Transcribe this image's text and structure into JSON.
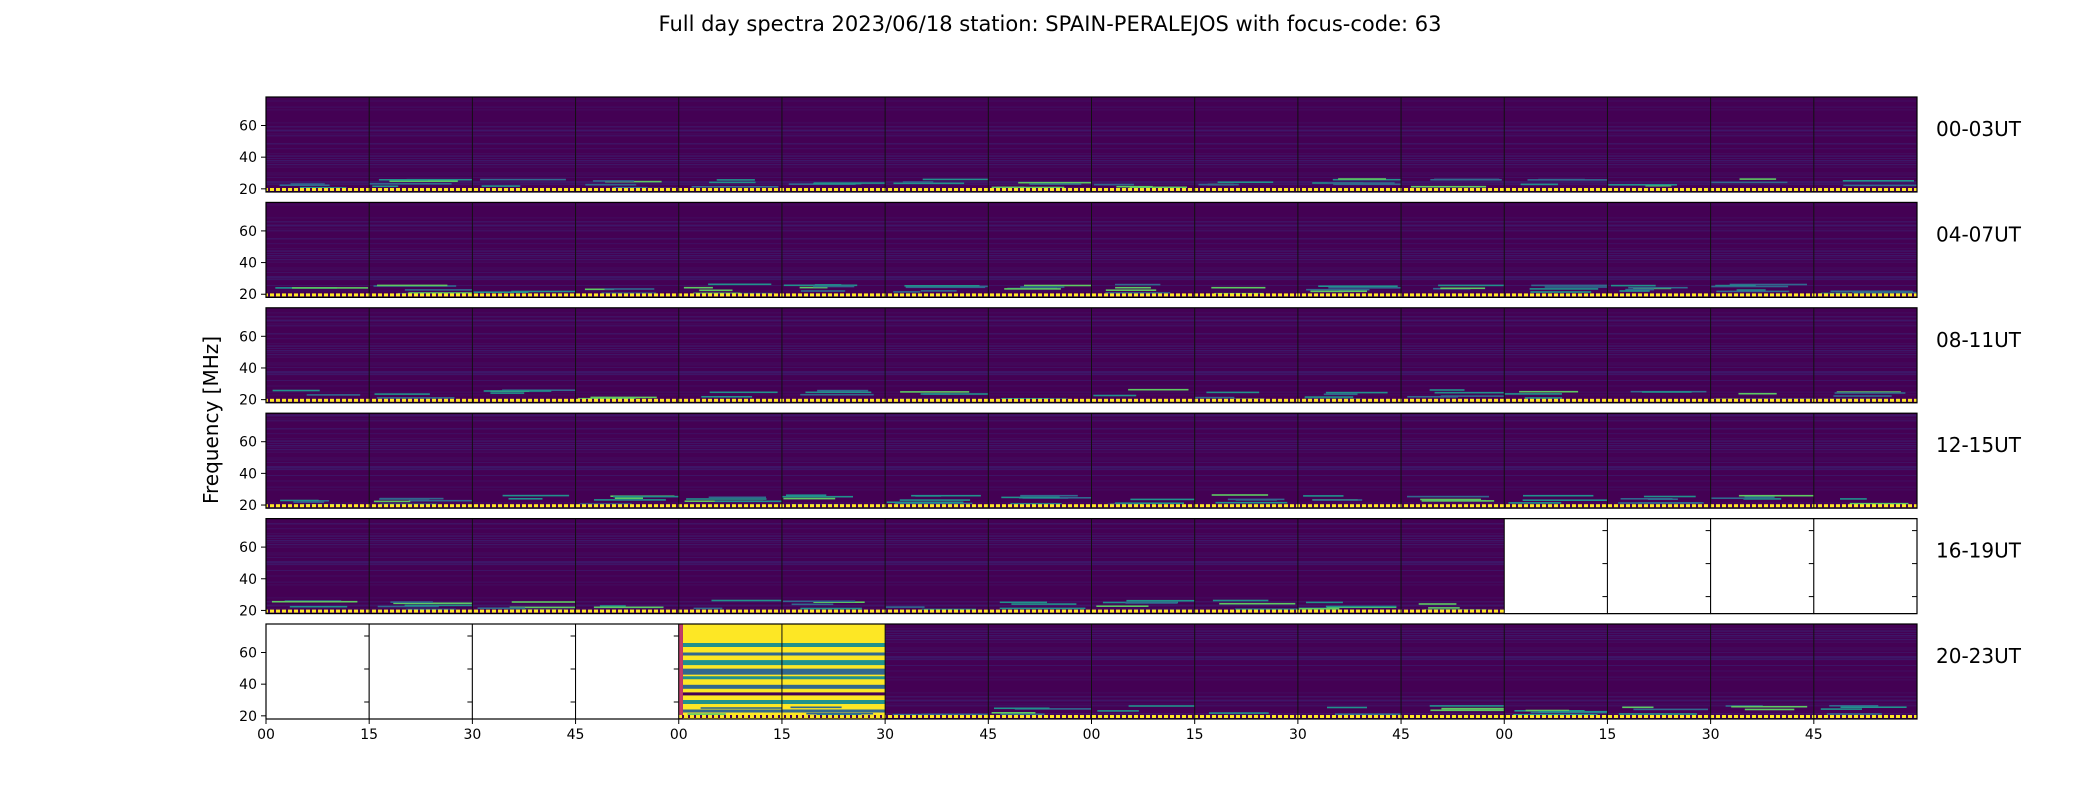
{
  "chart_data": {
    "type": "heatmap",
    "title": "Full day spectra 2023/06/18 station: SPAIN-PERALEJOS with focus-code: 63",
    "ylabel": "Frequency [MHz]",
    "y_ticks": [
      "20",
      "40",
      "60"
    ],
    "ylim": [
      18,
      78
    ],
    "x_tick_labels": [
      "00",
      "15",
      "30",
      "45",
      "00",
      "15",
      "30",
      "45",
      "00",
      "15",
      "30",
      "45",
      "00",
      "15",
      "30",
      "45"
    ],
    "colormap": "viridis",
    "rows": [
      {
        "label": "00-03UT",
        "panels": [
          "data",
          "data",
          "data",
          "data",
          "data",
          "data",
          "data",
          "data",
          "data",
          "data",
          "data",
          "data",
          "data",
          "data",
          "data",
          "data"
        ]
      },
      {
        "label": "04-07UT",
        "panels": [
          "data",
          "data",
          "data",
          "data",
          "data",
          "data",
          "data",
          "data",
          "data",
          "data",
          "data",
          "data",
          "data",
          "data",
          "data",
          "data"
        ]
      },
      {
        "label": "08-11UT",
        "panels": [
          "data",
          "data",
          "data",
          "data",
          "data",
          "data",
          "data",
          "data",
          "data",
          "data",
          "data",
          "data",
          "data",
          "data",
          "data",
          "data"
        ]
      },
      {
        "label": "12-15UT",
        "panels": [
          "data",
          "data",
          "data",
          "data",
          "data",
          "data",
          "data",
          "data",
          "data",
          "data",
          "data",
          "data",
          "data",
          "data",
          "data",
          "data"
        ]
      },
      {
        "label": "16-19UT",
        "panels": [
          "data",
          "data",
          "data",
          "data",
          "data",
          "data",
          "data",
          "data",
          "data",
          "data",
          "data",
          "data",
          "empty",
          "empty",
          "empty",
          "empty"
        ]
      },
      {
        "label": "20-23UT",
        "panels": [
          "empty",
          "empty",
          "empty",
          "empty",
          "burst",
          "burst",
          "data",
          "data",
          "data",
          "data",
          "data",
          "data",
          "data",
          "data",
          "data",
          "data"
        ]
      }
    ]
  },
  "colors": {
    "background": "#440154",
    "noise": "#3b1d6e",
    "low": "#31688e",
    "mid": "#21918c",
    "high": "#5ec962",
    "peak": "#fde725",
    "empty": "#ffffff"
  }
}
